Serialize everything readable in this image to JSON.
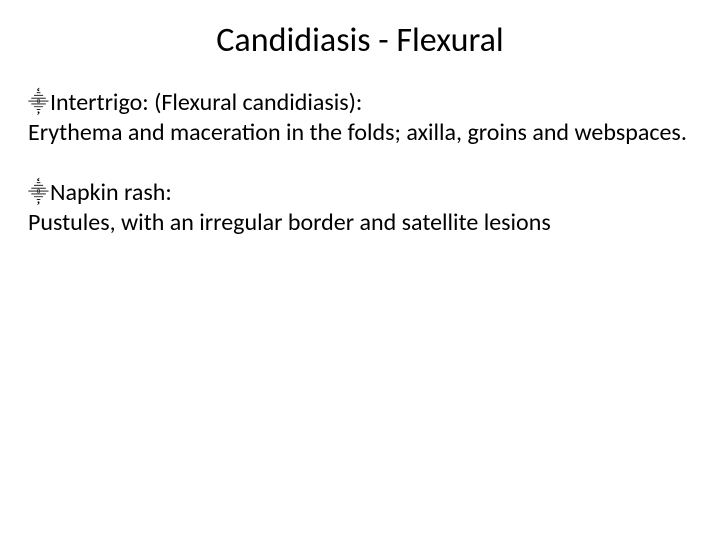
{
  "slide": {
    "title": "Candidiasis - Flexural",
    "title_fontsize": 34,
    "title_color": "#000000",
    "background_color": "#ffffff",
    "body_fontsize": 24,
    "body_color": "#000000",
    "bullet_glyph": "⸎",
    "sections": [
      {
        "heading": "Intertrigo: (Flexural candidiasis):",
        "body": "Erythema and maceration in the folds; axilla, groins and webspaces."
      },
      {
        "heading": "Napkin rash:",
        "body": "Pustules, with an irregular border and satellite lesions"
      }
    ]
  }
}
